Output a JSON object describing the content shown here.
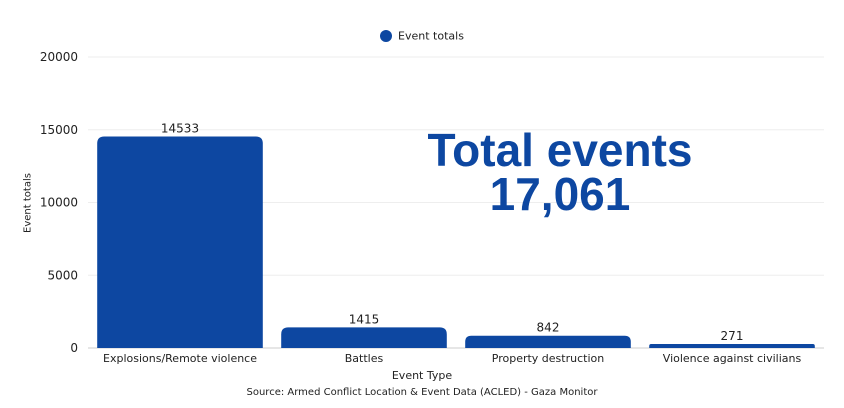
{
  "chart_data": {
    "type": "bar",
    "categories": [
      "Explosions/Remote violence",
      "Battles",
      "Property destruction",
      "Violence against civilians"
    ],
    "series": [
      {
        "name": "Event totals",
        "values": [
          14533,
          1415,
          842,
          271
        ]
      }
    ],
    "data_labels": [
      "14533",
      "1415",
      "842",
      "271"
    ],
    "xlabel": "Event Type",
    "ylabel": "Event totals",
    "ylim": [
      0,
      20000
    ],
    "yticks": [
      0,
      5000,
      10000,
      15000,
      20000
    ],
    "grid": true,
    "legend_position": "top-center",
    "bar_color": "#0d47a1"
  },
  "annotation": {
    "line1": "Total events",
    "line2": "17,061",
    "color": "#0d47a1"
  },
  "legend": {
    "label": "Event totals"
  },
  "source": "Source: Armed Conflict Location & Event Data (ACLED) - Gaza Monitor"
}
